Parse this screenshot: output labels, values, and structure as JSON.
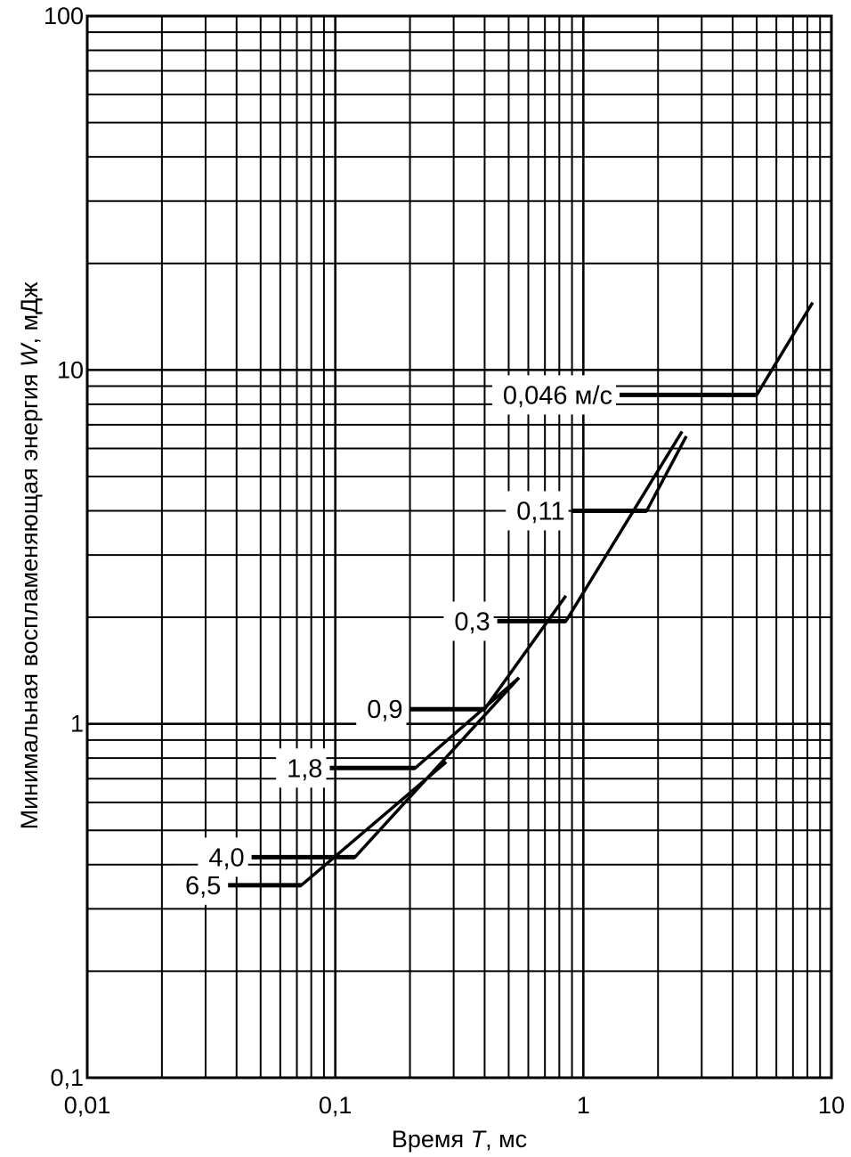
{
  "chart_data": {
    "type": "line",
    "title": "",
    "xlabel_prefix": "Время ",
    "xlabel_var": "T",
    "xlabel_suffix": ", мс",
    "ylabel_prefix": "Минимальная воспламеняющая энергия ",
    "ylabel_var": "W",
    "ylabel_suffix": ", мДж",
    "x_scale": "log",
    "y_scale": "log",
    "xlim": [
      0.01,
      10
    ],
    "ylim": [
      0.1,
      100
    ],
    "grid": true,
    "x_ticks": [
      {
        "value": 0.01,
        "label": "0,01"
      },
      {
        "value": 0.1,
        "label": "0,1"
      },
      {
        "value": 1,
        "label": "1"
      },
      {
        "value": 10,
        "label": "10"
      }
    ],
    "y_ticks": [
      {
        "value": 0.1,
        "label": "0,1"
      },
      {
        "value": 1,
        "label": "1"
      },
      {
        "value": 10,
        "label": "10"
      },
      {
        "value": 100,
        "label": "100"
      }
    ],
    "series": [
      {
        "name": "0,046 м/с",
        "plateau_w": 8.5,
        "plateau_t": [
          1.4,
          5.0
        ],
        "rise": [
          [
            5.0,
            8.5
          ],
          [
            8.4,
            15.5
          ]
        ],
        "leader_end_t": 0.85
      },
      {
        "name": "0,11",
        "plateau_w": 4.0,
        "plateau_t": [
          0.9,
          1.8
        ],
        "rise": [
          [
            1.8,
            4.0
          ],
          [
            2.6,
            6.5
          ]
        ],
        "leader_end_t": 0.9
      },
      {
        "name": "0,3",
        "plateau_w": 1.95,
        "plateau_t": [
          0.45,
          0.85
        ],
        "rise": [
          [
            0.85,
            1.95
          ],
          [
            2.5,
            6.7
          ]
        ],
        "leader_end_t": 0.45
      },
      {
        "name": "0,9",
        "plateau_w": 1.1,
        "plateau_t": [
          0.2,
          0.4
        ],
        "rise": [
          [
            0.4,
            1.1
          ],
          [
            0.85,
            2.3
          ]
        ],
        "leader_end_t": null
      },
      {
        "name": "1,8",
        "plateau_w": 0.75,
        "plateau_t": [
          0.095,
          0.21
        ],
        "rise": [
          [
            0.21,
            0.75
          ],
          [
            0.55,
            1.35
          ]
        ],
        "leader_end_t": 0.095
      },
      {
        "name": "4,0",
        "plateau_w": 0.42,
        "plateau_t": [
          0.046,
          0.12
        ],
        "rise": [
          [
            0.12,
            0.42
          ],
          [
            0.55,
            1.35
          ]
        ],
        "leader_end_t": null
      },
      {
        "name": "6,5",
        "plateau_w": 0.35,
        "plateau_t": [
          0.037,
          0.073
        ],
        "rise": [
          [
            0.073,
            0.35
          ],
          [
            0.28,
            0.78
          ]
        ],
        "leader_end_t": null
      }
    ]
  }
}
